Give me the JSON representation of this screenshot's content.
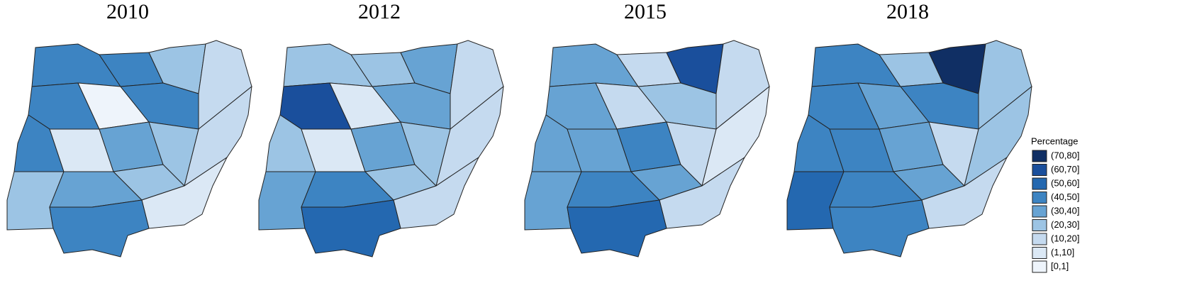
{
  "maps": [
    {
      "title": "2010",
      "region_classes": [
        3,
        3,
        5,
        6,
        3,
        8,
        3,
        6,
        3,
        7,
        4,
        5,
        5,
        4,
        5,
        7,
        3
      ]
    },
    {
      "title": "2012",
      "region_classes": [
        5,
        5,
        4,
        6,
        1,
        7,
        4,
        6,
        5,
        7,
        4,
        5,
        4,
        3,
        5,
        6,
        2
      ]
    },
    {
      "title": "2015",
      "region_classes": [
        4,
        6,
        1,
        6,
        4,
        6,
        5,
        7,
        4,
        4,
        3,
        6,
        4,
        3,
        4,
        6,
        2
      ]
    },
    {
      "title": "2018",
      "region_classes": [
        3,
        5,
        0,
        5,
        3,
        4,
        3,
        5,
        3,
        3,
        4,
        6,
        2,
        3,
        4,
        6,
        3
      ]
    }
  ],
  "legend": {
    "title": "Percentage",
    "items": [
      {
        "label": "(70,80]",
        "color": "#102f64"
      },
      {
        "label": "(60,70]",
        "color": "#1a4f9c"
      },
      {
        "label": "(50,60]",
        "color": "#2468b0"
      },
      {
        "label": "(40,50]",
        "color": "#3d84c2"
      },
      {
        "label": "(30,40]",
        "color": "#67a3d3"
      },
      {
        "label": "(20,30]",
        "color": "#9cc4e4"
      },
      {
        "label": "(10,20]",
        "color": "#c5daef"
      },
      {
        "label": "(1,10]",
        "color": "#dbe8f5"
      },
      {
        "label": "[0,1]",
        "color": "#eef4fb"
      }
    ]
  }
}
